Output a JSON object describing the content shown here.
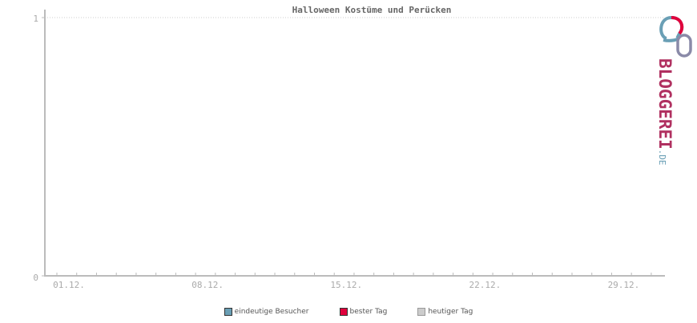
{
  "chart_data": {
    "type": "line",
    "title": "Halloween Kostüme und Perücken",
    "xlabel": "",
    "ylabel": "",
    "ylim": [
      0,
      1
    ],
    "y_ticks": [
      "0",
      "1"
    ],
    "x_tick_labels": [
      "01.12.",
      "08.12.",
      "15.12.",
      "22.12.",
      "29.12."
    ],
    "x_range": [
      "01.12.",
      "31.12."
    ],
    "grid": "dotted horizontal at 1",
    "legend_placement": "bottom",
    "series": [
      {
        "name": "eindeutige Besucher",
        "color": "#6a9fb5",
        "values": []
      },
      {
        "name": "bester Tag",
        "color": "#e0003c",
        "values": []
      },
      {
        "name": "heutiger Tag",
        "color": "#cccccc",
        "values": []
      }
    ]
  },
  "logo": {
    "text": "BLOGGEREI.DE"
  }
}
